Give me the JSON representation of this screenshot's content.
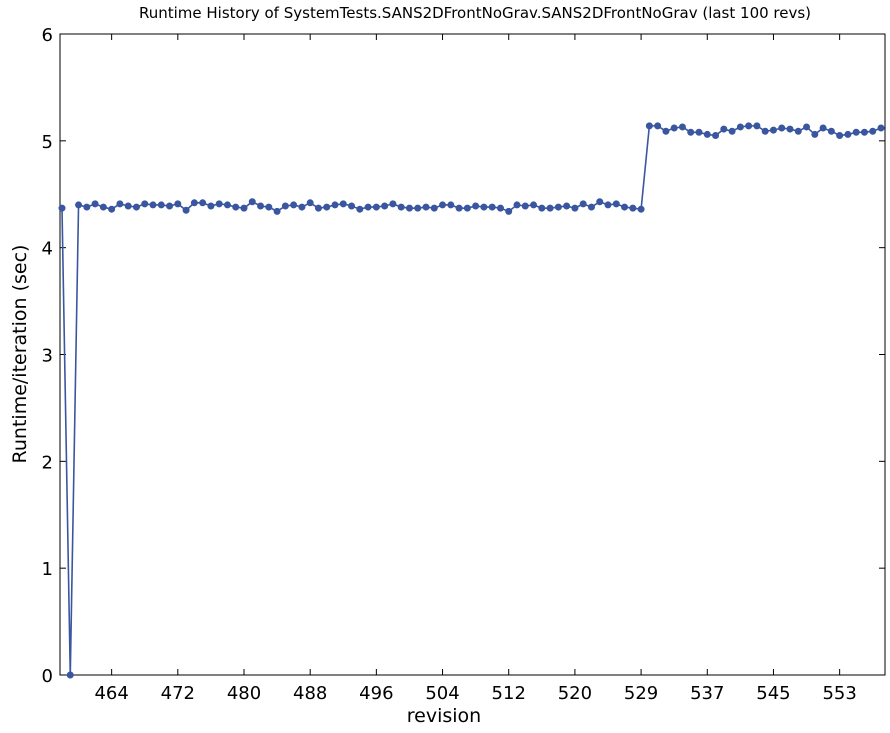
{
  "chart_data": {
    "type": "line",
    "title": "Runtime History of SystemTests.SANS2DFrontNoGrav.SANS2DFrontNoGrav (last 100 revs)",
    "xlabel": "revision",
    "ylabel": "Runtime/iteration (sec)",
    "x_tick_labels": [
      "464",
      "472",
      "480",
      "488",
      "496",
      "504",
      "512",
      "520",
      "529",
      "537",
      "545",
      "553"
    ],
    "y_ticks": [
      0,
      1,
      2,
      3,
      4,
      5,
      6
    ],
    "ylim": [
      0,
      6
    ],
    "grid": false,
    "legend": "none",
    "series": [
      {
        "color": "#3a56a0",
        "marker": "circle",
        "values": [
          4.37,
          0.0,
          4.4,
          4.38,
          4.41,
          4.38,
          4.36,
          4.41,
          4.39,
          4.38,
          4.41,
          4.4,
          4.4,
          4.39,
          4.41,
          4.35,
          4.42,
          4.42,
          4.39,
          4.41,
          4.4,
          4.38,
          4.37,
          4.43,
          4.39,
          4.38,
          4.34,
          4.39,
          4.4,
          4.38,
          4.42,
          4.37,
          4.38,
          4.4,
          4.41,
          4.39,
          4.36,
          4.38,
          4.38,
          4.39,
          4.41,
          4.38,
          4.37,
          4.37,
          4.38,
          4.37,
          4.4,
          4.4,
          4.37,
          4.37,
          4.39,
          4.38,
          4.38,
          4.37,
          4.34,
          4.4,
          4.39,
          4.4,
          4.37,
          4.37,
          4.38,
          4.39,
          4.37,
          4.41,
          4.38,
          4.43,
          4.4,
          4.41,
          4.38,
          4.37,
          4.36,
          5.14,
          5.14,
          5.09,
          5.12,
          5.13,
          5.08,
          5.08,
          5.06,
          5.05,
          5.11,
          5.09,
          5.13,
          5.14,
          5.14,
          5.09,
          5.1,
          5.12,
          5.11,
          5.09,
          5.13,
          5.06,
          5.12,
          5.09,
          5.05,
          5.06,
          5.08,
          5.08,
          5.09,
          5.12
        ]
      }
    ]
  }
}
